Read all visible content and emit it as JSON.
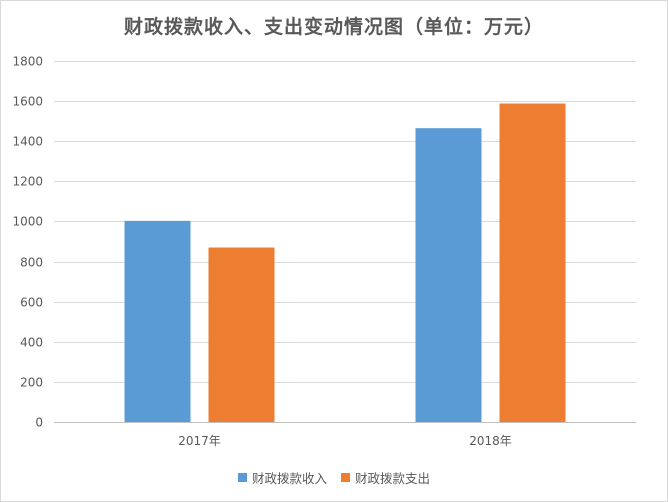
{
  "chart_data": {
    "type": "bar",
    "title": "财政拨款收入、支出变动情况图（单位：万元）",
    "categories": [
      "2017年",
      "2018年"
    ],
    "series": [
      {
        "name": "财政拨款收入",
        "color": "#5b9bd5",
        "values": [
          1003,
          1465
        ]
      },
      {
        "name": "财政拨款支出",
        "color": "#ed7d31",
        "values": [
          870,
          1588
        ]
      }
    ],
    "ylim": [
      0,
      1800
    ],
    "yticks": [
      0,
      200,
      400,
      600,
      800,
      1000,
      1200,
      1400,
      1600,
      1800
    ],
    "grid": true,
    "legend_position": "bottom"
  }
}
